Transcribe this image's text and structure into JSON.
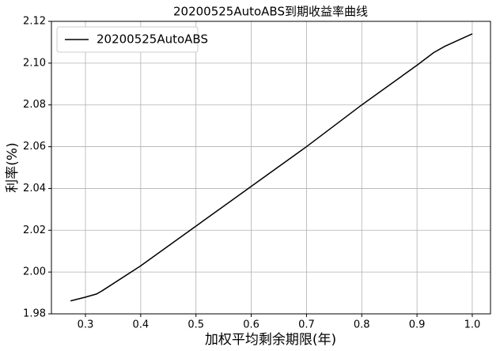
{
  "chart_data": {
    "type": "line",
    "title": "20200525AutoABS到期收益率曲线",
    "x_label": "加权平均剩余期限(年)",
    "y_label": "利率(%)",
    "x": [
      0.273,
      0.3,
      0.32,
      0.33,
      0.4,
      0.5,
      0.6,
      0.7,
      0.8,
      0.9,
      0.93,
      0.95,
      1.0
    ],
    "series": [
      {
        "name": "20200525AutoABS",
        "color": "#000000",
        "values": [
          1.9862,
          1.988,
          1.9895,
          1.991,
          2.003,
          2.022,
          2.041,
          2.06,
          2.08,
          2.099,
          2.105,
          2.108,
          2.114
        ]
      }
    ],
    "xlim": [
      0.2384,
      1.033
    ],
    "ylim": [
      1.98,
      2.12
    ],
    "xticks": [
      0.3,
      0.4,
      0.5,
      0.6,
      0.7,
      0.8,
      0.9,
      {
        "value": 1.0,
        "label": "1.0"
      }
    ],
    "yticks": [
      1.98,
      {
        "value": 2.0,
        "label": "2.00"
      },
      2.02,
      2.04,
      2.06,
      2.08,
      {
        "value": 2.1,
        "label": "2.10"
      },
      2.12
    ],
    "grid": true,
    "legend": "upper-left"
  }
}
